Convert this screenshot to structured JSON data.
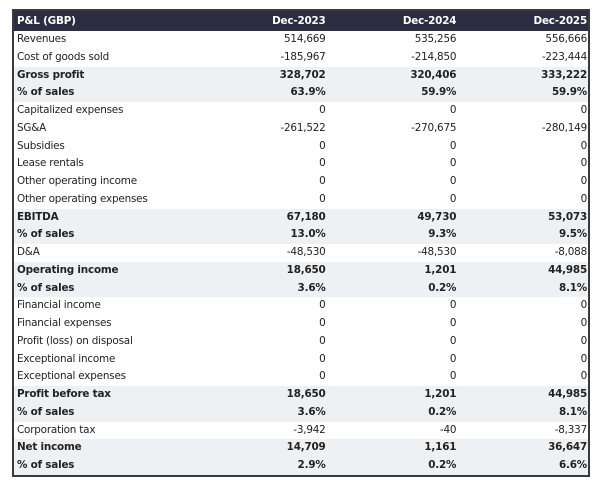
{
  "table": {
    "headers": [
      "P&L (GBP)",
      "Dec-2023",
      "Dec-2024",
      "Dec-2025"
    ],
    "rows": [
      {
        "label": "Revenues",
        "values": [
          "514,669",
          "535,256",
          "556,666"
        ],
        "bold": false
      },
      {
        "label": "Cost of goods sold",
        "values": [
          "-185,967",
          "-214,850",
          "-223,444"
        ],
        "bold": false
      },
      {
        "label": "Gross profit",
        "values": [
          "328,702",
          "320,406",
          "333,222"
        ],
        "bold": true
      },
      {
        "label": "% of sales",
        "values": [
          "63.9%",
          "59.9%",
          "59.9%"
        ],
        "bold": true
      },
      {
        "label": "Capitalized expenses",
        "values": [
          "0",
          "0",
          "0"
        ],
        "bold": false
      },
      {
        "label": "SG&A",
        "values": [
          "-261,522",
          "-270,675",
          "-280,149"
        ],
        "bold": false
      },
      {
        "label": "Subsidies",
        "values": [
          "0",
          "0",
          "0"
        ],
        "bold": false
      },
      {
        "label": "Lease rentals",
        "values": [
          "0",
          "0",
          "0"
        ],
        "bold": false
      },
      {
        "label": "Other operating income",
        "values": [
          "0",
          "0",
          "0"
        ],
        "bold": false
      },
      {
        "label": "Other operating expenses",
        "values": [
          "0",
          "0",
          "0"
        ],
        "bold": false
      },
      {
        "label": "EBITDA",
        "values": [
          "67,180",
          "49,730",
          "53,073"
        ],
        "bold": true
      },
      {
        "label": "% of sales",
        "values": [
          "13.0%",
          "9.3%",
          "9.5%"
        ],
        "bold": true
      },
      {
        "label": "D&A",
        "values": [
          "-48,530",
          "-48,530",
          "-8,088"
        ],
        "bold": false
      },
      {
        "label": "Operating income",
        "values": [
          "18,650",
          "1,201",
          "44,985"
        ],
        "bold": true
      },
      {
        "label": "% of sales",
        "values": [
          "3.6%",
          "0.2%",
          "8.1%"
        ],
        "bold": true
      },
      {
        "label": "Financial income",
        "values": [
          "0",
          "0",
          "0"
        ],
        "bold": false
      },
      {
        "label": "Financial expenses",
        "values": [
          "0",
          "0",
          "0"
        ],
        "bold": false
      },
      {
        "label": "Profit (loss) on disposal",
        "values": [
          "0",
          "0",
          "0"
        ],
        "bold": false
      },
      {
        "label": "Exceptional income",
        "values": [
          "0",
          "0",
          "0"
        ],
        "bold": false
      },
      {
        "label": "Exceptional expenses",
        "values": [
          "0",
          "0",
          "0"
        ],
        "bold": false
      },
      {
        "label": "Profit before tax",
        "values": [
          "18,650",
          "1,201",
          "44,985"
        ],
        "bold": true
      },
      {
        "label": "% of sales",
        "values": [
          "3.6%",
          "0.2%",
          "8.1%"
        ],
        "bold": true
      },
      {
        "label": "Corporation tax",
        "values": [
          "-3,942",
          "-40",
          "-8,337"
        ],
        "bold": false
      },
      {
        "label": "Net income",
        "values": [
          "14,709",
          "1,161",
          "36,647"
        ],
        "bold": true
      },
      {
        "label": "% of sales",
        "values": [
          "2.9%",
          "0.2%",
          "6.6%"
        ],
        "bold": true
      }
    ]
  },
  "colors": {
    "header_bg": "#2b2d42",
    "highlight_bg": "#edf1f4"
  }
}
